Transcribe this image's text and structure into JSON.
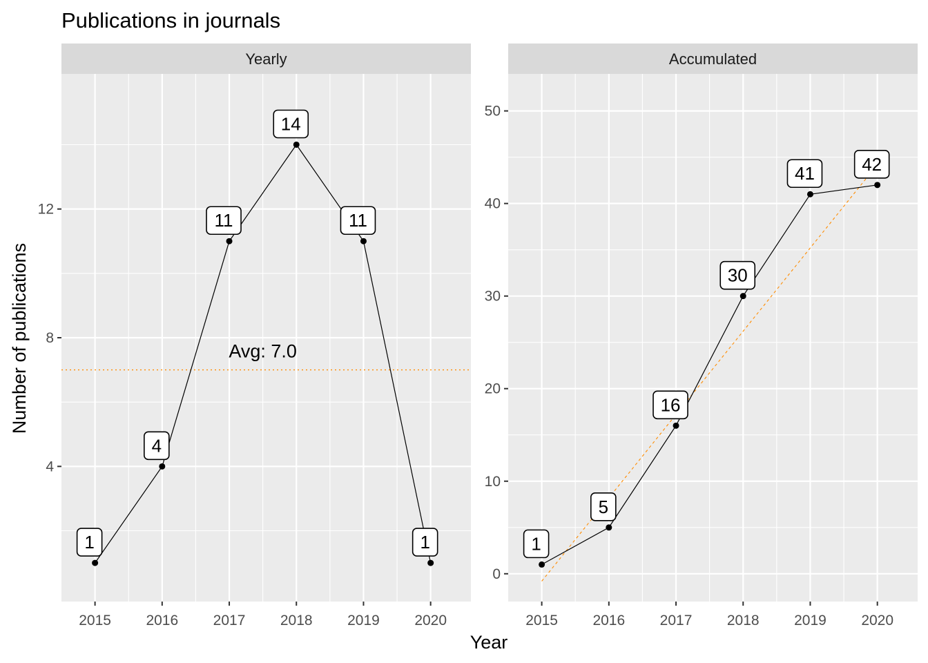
{
  "title": "Publications in journals",
  "xlabel": "Year",
  "ylabel": "Number of publications",
  "chart_data": [
    {
      "type": "line",
      "panel": "Yearly",
      "x": [
        2015,
        2016,
        2017,
        2018,
        2019,
        2020
      ],
      "values": [
        1,
        4,
        11,
        14,
        11,
        1
      ],
      "labels": [
        "1",
        "4",
        "11",
        "14",
        "11",
        "1"
      ],
      "xlim": [
        2014.5,
        2020.6
      ],
      "ylim": [
        -0.2,
        16.2
      ],
      "yticks": [
        4,
        8,
        12
      ],
      "ytick_labels": [
        "4",
        "8",
        "12"
      ],
      "xtick_labels": [
        "2015",
        "2016",
        "2017",
        "2018",
        "2019",
        "2020"
      ],
      "reference_line": {
        "y": 7.0,
        "label": "Avg: 7.0",
        "label_x": 2017.5,
        "label_y": 7.3,
        "color": "#ff8c00"
      },
      "grid": true
    },
    {
      "type": "line",
      "panel": "Accumulated",
      "x": [
        2015,
        2016,
        2017,
        2018,
        2019,
        2020
      ],
      "values": [
        1,
        5,
        16,
        30,
        41,
        42
      ],
      "labels": [
        "1",
        "5",
        "16",
        "30",
        "41",
        "42"
      ],
      "xlim": [
        2014.5,
        2020.6
      ],
      "ylim": [
        -3,
        54
      ],
      "yticks": [
        0,
        10,
        20,
        30,
        40,
        50
      ],
      "ytick_labels": [
        "0",
        "10",
        "20",
        "30",
        "40",
        "50"
      ],
      "xtick_labels": [
        "2015",
        "2016",
        "2017",
        "2018",
        "2019",
        "2020"
      ],
      "trend_line": {
        "x": [
          2015,
          2020
        ],
        "y": [
          -0.8,
          44.2
        ],
        "color": "#ff8c00"
      },
      "grid": true
    }
  ]
}
